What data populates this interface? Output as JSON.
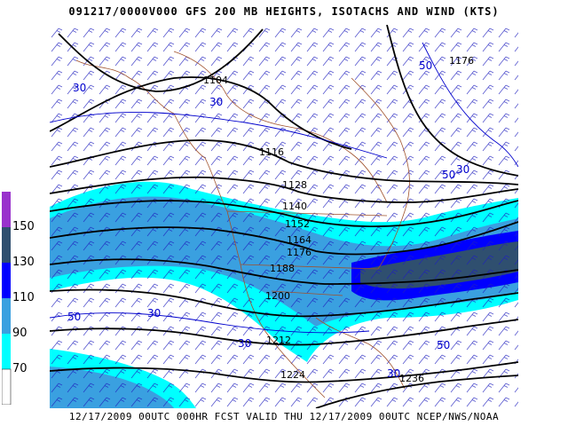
{
  "header": {
    "title": "091217/0000V000 GFS 200 MB HEIGHTS, ISOTACHS AND WIND (KTS)"
  },
  "footer": {
    "text": "12/17/2009 00UTC 000HR FCST VALID THU 12/17/2009 00UTC NCEP/NWS/NOAA"
  },
  "colorbar": {
    "labels": [
      "150",
      "130",
      "110",
      "90",
      "70"
    ],
    "colors": {
      "150": "#9932cc",
      "130": "#2f4f6f",
      "110": "#0000ff",
      "90": "#3aa0e0",
      "70": "#00ffff",
      "low": "#ffffff"
    }
  },
  "map": {
    "height_labels": [
      "1104",
      "1116",
      "1128",
      "1140",
      "1152",
      "1164",
      "1176",
      "1188",
      "1200",
      "1212",
      "1224",
      "1236",
      "1176"
    ],
    "isotach_labels": [
      "30",
      "30",
      "50",
      "50",
      "30",
      "30",
      "30",
      "50",
      "50",
      "30"
    ],
    "colors": {
      "height": "#000000",
      "isotach": "#0000cd",
      "barb": "#1e1ebe",
      "coast": "#a0522d"
    }
  }
}
